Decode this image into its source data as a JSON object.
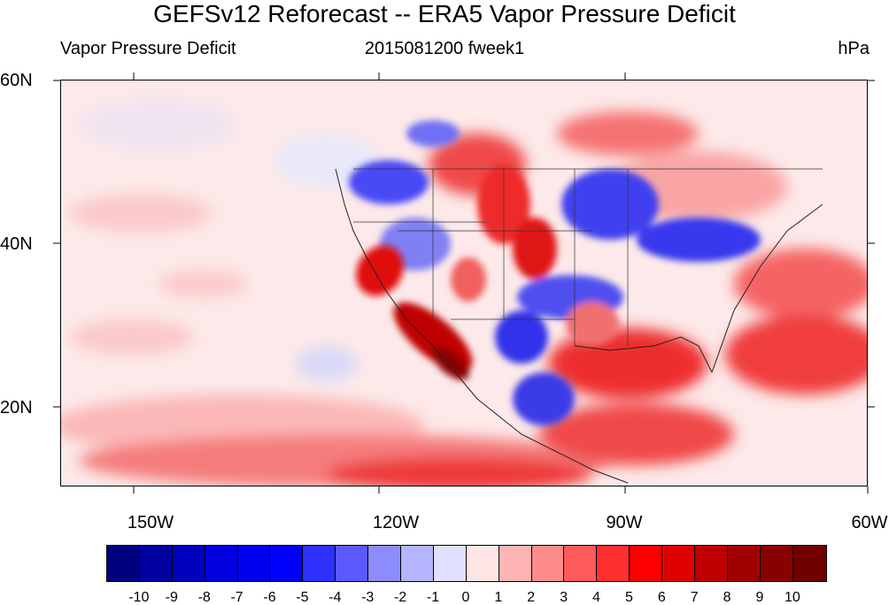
{
  "title": "GEFSv12 Reforecast -- ERA5 Vapor Pressure Deficit",
  "subtitle_left": "Vapor Pressure Deficit",
  "subtitle_center": "2015081200 fweek1",
  "subtitle_right": "hPa",
  "y_axis_labels": [
    "60N",
    "40N",
    "20N"
  ],
  "x_axis_labels": [
    "150W",
    "120W",
    "90W",
    "60W"
  ],
  "colorbar": {
    "colors": [
      "#00007f",
      "#0000a0",
      "#0000c0",
      "#0000df",
      "#0000f0",
      "#0000ff",
      "#3030ff",
      "#5a5aff",
      "#8c8cff",
      "#b4b4ff",
      "#e0e0ff",
      "#ffe6e6",
      "#ffb4b4",
      "#ff8c8c",
      "#ff5a5a",
      "#ff3030",
      "#ff0000",
      "#e00000",
      "#c00000",
      "#a00000",
      "#880000",
      "#700000"
    ],
    "labels": [
      "-10",
      "-9",
      "-8",
      "-7",
      "-6",
      "-5",
      "-4",
      "-3",
      "-2",
      "-1",
      "0",
      "1",
      "2",
      "3",
      "4",
      "5",
      "6",
      "7",
      "8",
      "9",
      "10"
    ]
  }
}
